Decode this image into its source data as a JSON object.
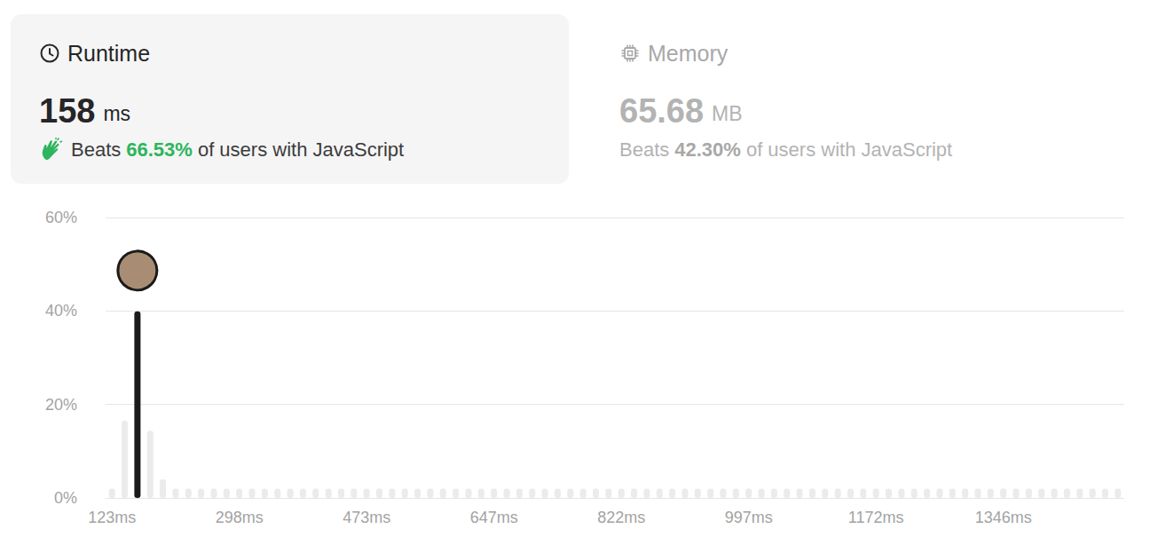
{
  "header": {
    "runtime": {
      "title": "Runtime",
      "value": "158",
      "unit": "ms",
      "beats_prefix": "Beats",
      "beats": "66.53%",
      "beats_suffix": "of users with JavaScript"
    },
    "memory": {
      "title": "Memory",
      "value": "65.68",
      "unit": "MB",
      "beats_prefix": "Beats",
      "beats": "42.30%",
      "beats_suffix": "of users with JavaScript"
    }
  },
  "chart_data": {
    "type": "bar",
    "categories": [
      "123ms",
      null,
      null,
      null,
      null,
      null,
      null,
      null,
      null,
      null,
      "298ms",
      null,
      null,
      null,
      null,
      null,
      null,
      null,
      null,
      null,
      "473ms",
      null,
      null,
      null,
      null,
      null,
      null,
      null,
      null,
      null,
      "647ms",
      null,
      null,
      null,
      null,
      null,
      null,
      null,
      null,
      null,
      "822ms",
      null,
      null,
      null,
      null,
      null,
      null,
      null,
      null,
      null,
      "997ms",
      null,
      null,
      null,
      null,
      null,
      null,
      null,
      null,
      null,
      "1172ms",
      null,
      null,
      null,
      null,
      null,
      null,
      null,
      null,
      null,
      "1346ms",
      null,
      null,
      null,
      null,
      null,
      null,
      null,
      null,
      null
    ],
    "values": [
      2,
      16.5,
      39.9,
      14.4,
      4,
      2,
      2,
      2,
      2,
      2,
      2,
      2,
      2,
      2,
      2,
      2,
      2,
      2,
      2,
      2,
      2,
      2,
      2,
      2,
      2,
      2,
      2,
      2,
      2,
      2,
      2,
      2,
      2,
      2,
      2,
      2,
      2,
      2,
      2,
      2,
      2,
      2,
      2,
      2,
      2,
      2,
      2,
      2,
      2,
      2,
      2,
      2,
      2,
      2,
      2,
      2,
      2,
      2,
      2,
      2,
      2,
      2,
      2,
      2,
      2,
      2,
      2,
      2,
      2,
      2,
      2,
      2,
      2,
      2,
      2,
      2,
      2,
      2,
      2,
      2
    ],
    "colors": [
      "#ebebeb",
      "#ebebeb",
      "#1a1a1a",
      "#ebebeb",
      "#ebebeb",
      "#ebebeb",
      "#ebebeb",
      "#ebebeb",
      "#ebebeb",
      "#ebebeb",
      "#ebebeb",
      "#ebebeb",
      "#ebebeb",
      "#ebebeb",
      "#ebebeb",
      "#ebebeb",
      "#ebebeb",
      "#ebebeb",
      "#ebebeb",
      "#ebebeb",
      "#ebebeb",
      "#ebebeb",
      "#ebebeb",
      "#ebebeb",
      "#ebebeb",
      "#ebebeb",
      "#ebebeb",
      "#ebebeb",
      "#ebebeb",
      "#ebebeb",
      "#ebebeb",
      "#ebebeb",
      "#ebebeb",
      "#ebebeb",
      "#ebebeb",
      "#ebebeb",
      "#ebebeb",
      "#ebebeb",
      "#ebebeb",
      "#ebebeb",
      "#ebebeb",
      "#ebebeb",
      "#ebebeb",
      "#ebebeb",
      "#ebebeb",
      "#ebebeb",
      "#ebebeb",
      "#ebebeb",
      "#ebebeb",
      "#ebebeb",
      "#ebebeb",
      "#ebebeb",
      "#ebebeb",
      "#ebebeb",
      "#ebebeb",
      "#ebebeb",
      "#ebebeb",
      "#ebebeb",
      "#ebebeb",
      "#ebebeb",
      "#ebebeb",
      "#ebebeb",
      "#ebebeb",
      "#ebebeb",
      "#ebebeb",
      "#ebebeb",
      "#ebebeb",
      "#ebebeb",
      "#ebebeb",
      "#ebebeb",
      "#ebebeb",
      "#ebebeb",
      "#ebebeb",
      "#ebebeb",
      "#ebebeb",
      "#ebebeb",
      "#ebebeb",
      "#ebebeb",
      "#ebebeb",
      "#ebebeb"
    ],
    "ylim": [
      0,
      60
    ],
    "yticks": [
      {
        "value": 0,
        "label": "0%"
      },
      {
        "value": 20,
        "label": "20%"
      },
      {
        "value": 40,
        "label": "40%"
      },
      {
        "value": 60,
        "label": "60%"
      }
    ],
    "grid": true
  }
}
